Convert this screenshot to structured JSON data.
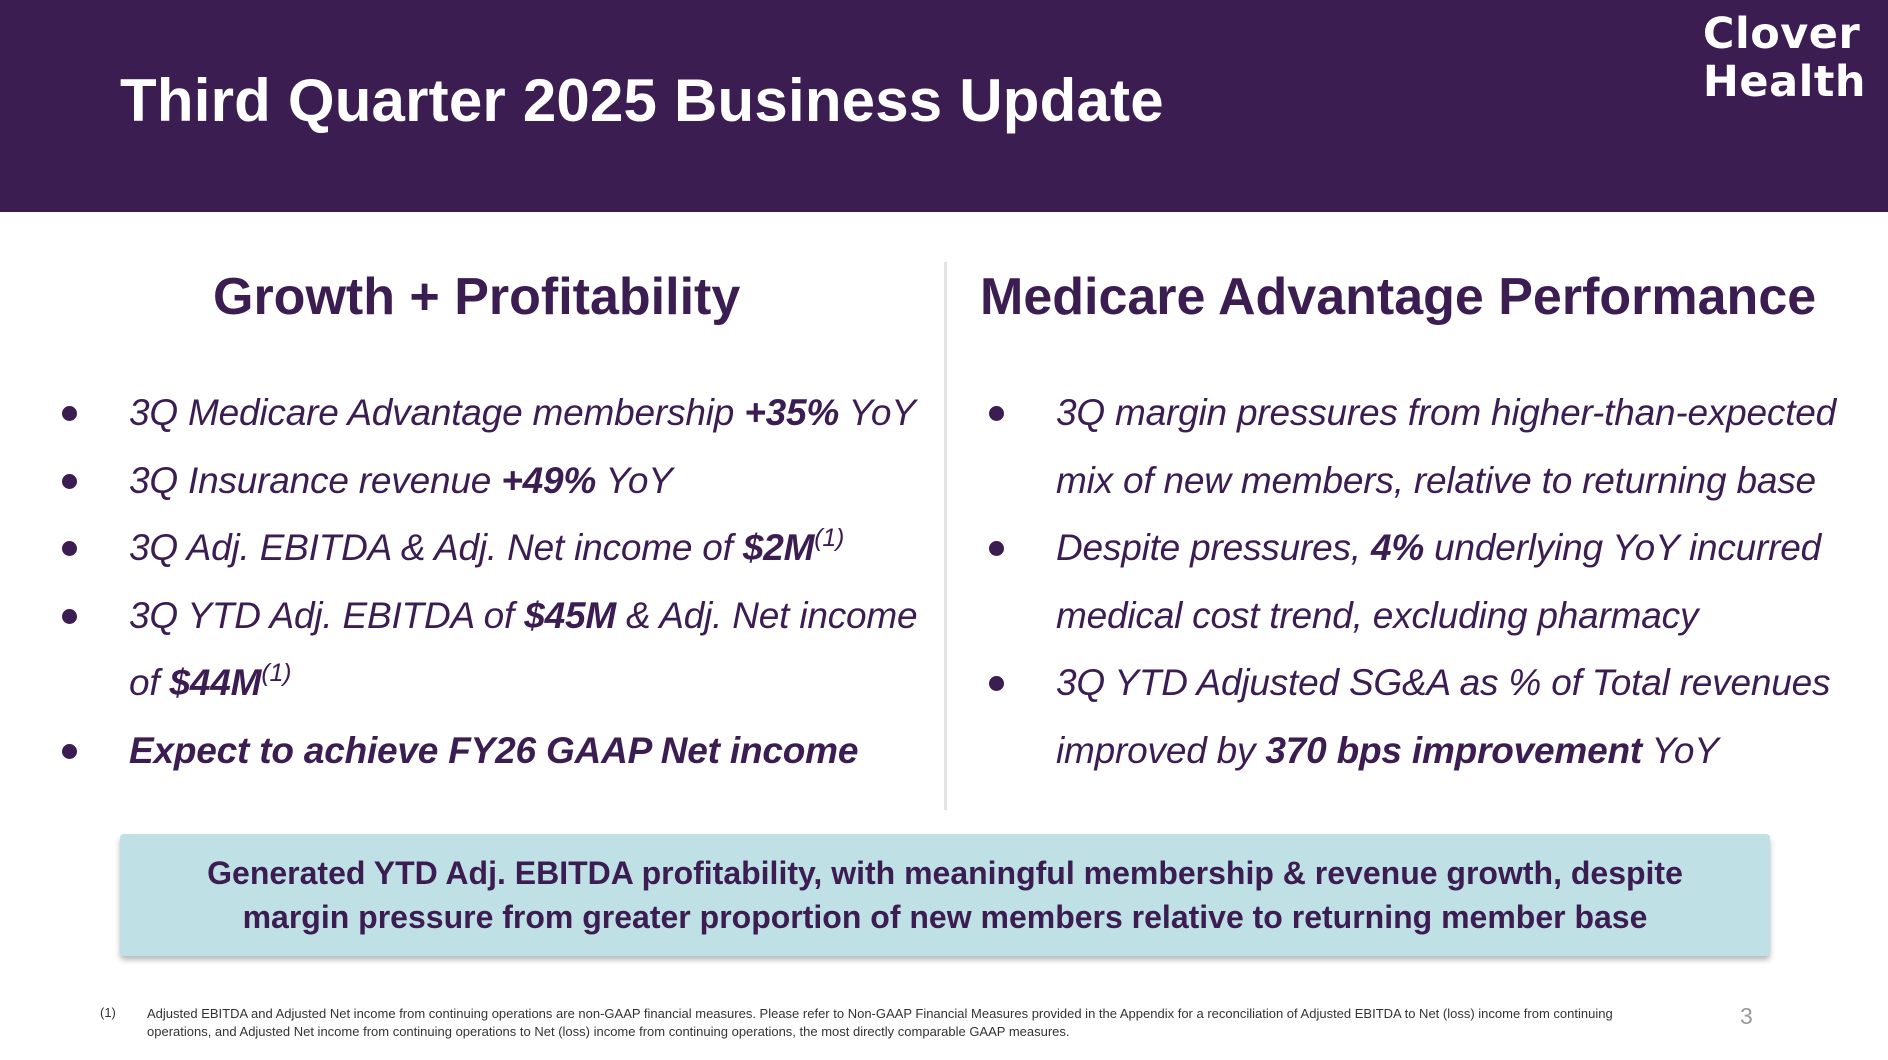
{
  "header": {
    "title": "Third Quarter 2025 Business Update",
    "logo_line1": "Clover",
    "logo_line2": "Health"
  },
  "left_column": {
    "heading": "Growth + Profitability",
    "bullets": [
      {
        "pre": "3Q Medicare Advantage membership ",
        "bold": "+35%",
        "post": " YoY"
      },
      {
        "pre": "3Q Insurance revenue ",
        "bold": "+49%",
        "post": " YoY"
      },
      {
        "pre": "3Q Adj. EBITDA & Adj. Net income of ",
        "bold": "$2M",
        "sup": "(1)"
      },
      {
        "pre": "3Q YTD Adj. EBITDA of ",
        "bold": "$45M",
        "mid": " & Adj. Net income of ",
        "bold2": "$44M",
        "sup": "(1)"
      },
      {
        "bold": "Expect to achieve FY26 GAAP Net income"
      }
    ]
  },
  "right_column": {
    "heading": "Medicare Advantage Performance",
    "bullets": [
      {
        "pre": "3Q margin pressures from higher-than-expected mix of new members, relative to returning base"
      },
      {
        "pre": "Despite pressures, ",
        "bold": "4%",
        "post": " underlying YoY incurred medical cost trend, excluding pharmacy"
      },
      {
        "pre": "3Q YTD Adjusted SG&A as % of Total revenues improved by ",
        "bold": "370 bps improvement",
        "post": " YoY"
      }
    ]
  },
  "callout": {
    "line1": "Generated YTD Adj. EBITDA profitability, with meaningful membership & revenue growth, despite",
    "line2": "margin pressure from greater proportion of new members relative to returning member base"
  },
  "footnote": {
    "number": "(1)",
    "text": "Adjusted EBITDA and Adjusted Net income from continuing operations are non-GAAP financial measures. Please refer to Non-GAAP Financial Measures provided in the Appendix for a reconciliation of Adjusted EBITDA to Net (loss) income from continuing operations, and Adjusted Net income from continuing operations to Net (loss) income from continuing operations, the most directly comparable GAAP measures."
  },
  "page_number": "3",
  "colors": {
    "brand_purple": "#3b1d52",
    "callout_bg": "#bfe0e4"
  }
}
